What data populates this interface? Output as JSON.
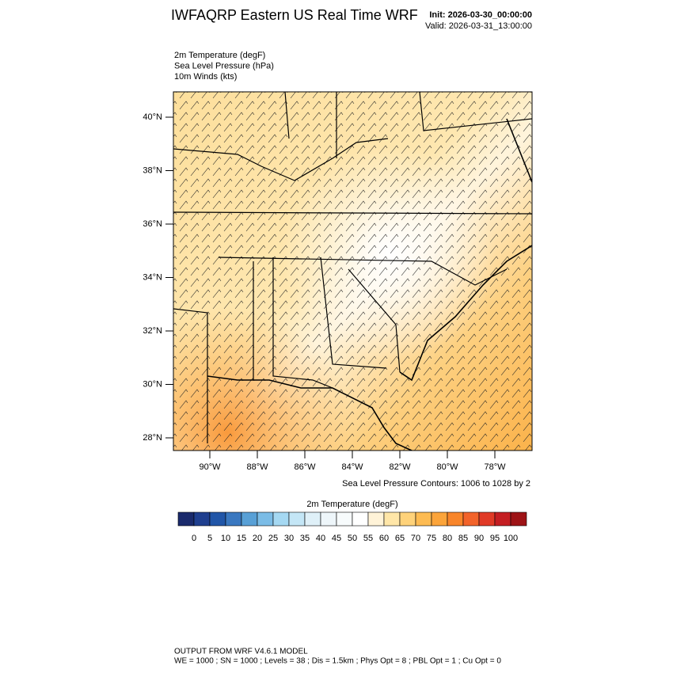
{
  "header": {
    "title": "IWFAQRP Eastern US Real Time WRF",
    "init": "Init: 2026-03-30_00:00:00",
    "valid": "Valid: 2026-03-31_13:00:00"
  },
  "fields": [
    "2m Temperature   (degF)",
    "Sea Level Pressure   (hPa)",
    "10m Winds   (kts)"
  ],
  "map": {
    "lat_labels": [
      "40°N",
      "38°N",
      "36°N",
      "34°N",
      "32°N",
      "30°N",
      "28°N"
    ],
    "lon_labels": [
      "90°W",
      "88°W",
      "86°W",
      "84°W",
      "82°W",
      "80°W",
      "78°W"
    ],
    "contour_note": "Sea Level Pressure Contours: 1006 to 1028 by 2"
  },
  "colorbar": {
    "title": "2m Temperature  (degF)",
    "levels": [
      0,
      5,
      10,
      15,
      20,
      25,
      30,
      35,
      40,
      45,
      50,
      55,
      60,
      65,
      70,
      75,
      80,
      85,
      90,
      95,
      100
    ],
    "colors": [
      "#1a2a6c",
      "#1f3f8f",
      "#2156a8",
      "#3a78c0",
      "#58a0d6",
      "#7bbce6",
      "#a5d8f2",
      "#c4e6f6",
      "#dff0f8",
      "#eef6fa",
      "#f7fbfc",
      "#ffffff",
      "#fff3d8",
      "#ffe6a8",
      "#fed27a",
      "#fdbb52",
      "#fba43a",
      "#f8852a",
      "#f2632a",
      "#e03a26",
      "#c41e22",
      "#9e1316"
    ]
  },
  "footer": {
    "line1": "OUTPUT FROM WRF V4.6.1 MODEL",
    "line2": "WE = 1000 ; SN = 1000 ; Levels = 38 ; Dis = 1.5km ; Phys Opt = 8 ; PBL Opt = 1 ; Cu Opt = 0"
  }
}
